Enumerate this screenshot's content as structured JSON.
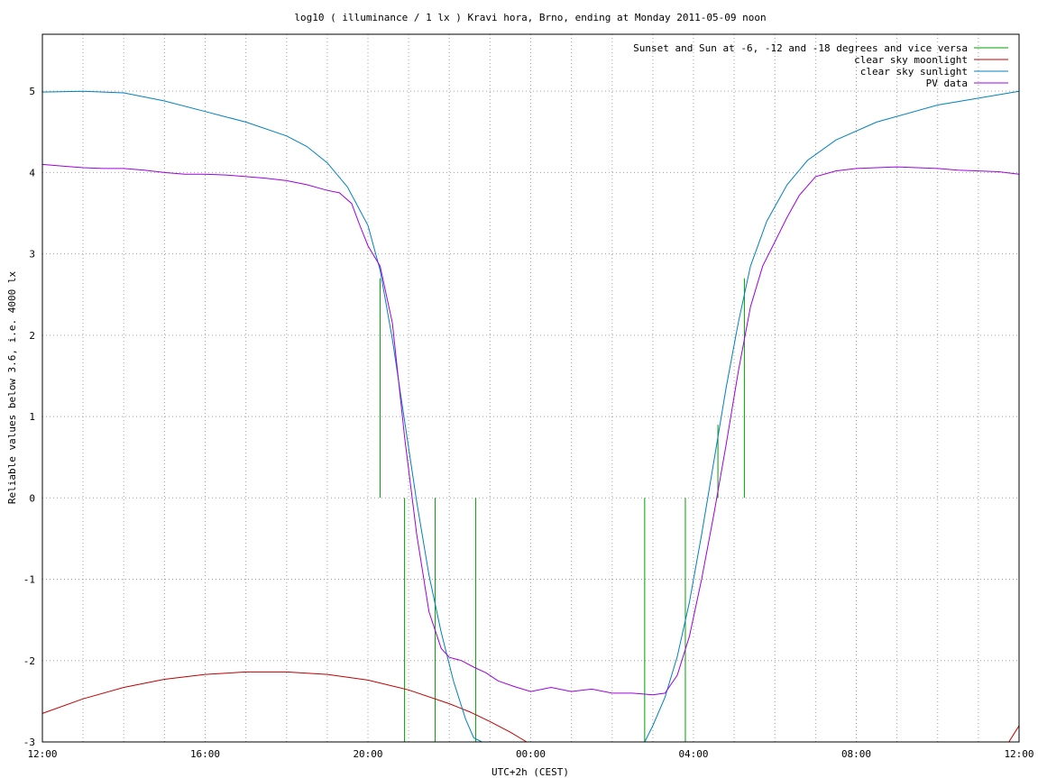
{
  "chart_data": {
    "type": "line",
    "title": "log10 ( illuminance / 1 lx ) Kravi hora, Brno, ending at Monday 2011-05-09 noon",
    "xlabel": "UTC+2h (CEST)",
    "ylabel": "Reliable values below 3.6, i.e. 4000 lx",
    "x_unit": "hours since 12:00 (start of window)",
    "xlim": [
      0,
      24
    ],
    "ylim": [
      -3,
      5.7
    ],
    "grid": true,
    "legend_position": "top-right",
    "x_ticks": [
      {
        "value": 0,
        "label": "12:00"
      },
      {
        "value": 4,
        "label": "16:00"
      },
      {
        "value": 8,
        "label": "20:00"
      },
      {
        "value": 12,
        "label": "00:00"
      },
      {
        "value": 16,
        "label": "04:00"
      },
      {
        "value": 20,
        "label": "08:00"
      },
      {
        "value": 24,
        "label": "12:00"
      }
    ],
    "y_ticks": [
      {
        "value": -3,
        "label": "-3"
      },
      {
        "value": -2,
        "label": "-2"
      },
      {
        "value": -1,
        "label": "-1"
      },
      {
        "value": 0,
        "label": "0"
      },
      {
        "value": 1,
        "label": "1"
      },
      {
        "value": 2,
        "label": "2"
      },
      {
        "value": 3,
        "label": "3"
      },
      {
        "value": 4,
        "label": "4"
      },
      {
        "value": 5,
        "label": "5"
      }
    ],
    "series": [
      {
        "name": "Sunset and Sun at -6, -12 and -18 degrees and vice versa",
        "color": "#00a000",
        "kind": "vertical-lines",
        "lines": [
          {
            "x": 8.3,
            "y": [
              0,
              2.7
            ]
          },
          {
            "x": 8.9,
            "y": [
              -3,
              0
            ]
          },
          {
            "x": 9.65,
            "y": [
              -3,
              0
            ]
          },
          {
            "x": 10.65,
            "y": [
              -3,
              0
            ]
          },
          {
            "x": 14.8,
            "y": [
              -3,
              0
            ]
          },
          {
            "x": 15.8,
            "y": [
              -3,
              0
            ]
          },
          {
            "x": 16.6,
            "y": [
              0,
              0.9
            ]
          },
          {
            "x": 17.25,
            "y": [
              0,
              2.7
            ]
          }
        ]
      },
      {
        "name": "clear sky moonlight",
        "color": "#c00000",
        "x": [
          0,
          1,
          2,
          3,
          4,
          5,
          6,
          7,
          8,
          9,
          10,
          10.5,
          11,
          11.5,
          11.9
        ],
        "y": [
          -2.65,
          -2.47,
          -2.33,
          -2.23,
          -2.17,
          -2.14,
          -2.14,
          -2.17,
          -2.24,
          -2.36,
          -2.53,
          -2.63,
          -2.75,
          -2.88,
          -3.0
        ],
        "x2": [
          23.75,
          23.9,
          24
        ],
        "y2": [
          -3.0,
          -2.88,
          -2.8
        ]
      },
      {
        "name": "clear sky sunlight",
        "color": "#0080c0",
        "x": [
          0,
          1,
          2,
          3,
          4,
          5,
          6,
          6.5,
          7,
          7.5,
          8,
          8.3,
          8.6,
          8.9,
          9.2,
          9.5,
          9.8,
          10.1,
          10.4,
          10.6,
          10.8,
          14.8,
          15.0,
          15.3,
          15.6,
          15.9,
          16.2,
          16.5,
          16.8,
          17.1,
          17.4,
          17.8,
          18.3,
          18.8,
          19.5,
          20.5,
          22,
          24
        ],
        "y": [
          4.99,
          5.0,
          4.98,
          4.88,
          4.75,
          4.62,
          4.45,
          4.32,
          4.12,
          3.82,
          3.35,
          2.8,
          1.95,
          0.95,
          -0.05,
          -0.95,
          -1.65,
          -2.25,
          -2.72,
          -2.95,
          -3.0,
          -3.0,
          -2.8,
          -2.45,
          -1.95,
          -1.28,
          -0.45,
          0.45,
          1.35,
          2.15,
          2.85,
          3.4,
          3.85,
          4.15,
          4.4,
          4.62,
          4.83,
          5.0
        ]
      },
      {
        "name": "PV data",
        "color": "#a000e0",
        "x": [
          0,
          0.5,
          1,
          1.5,
          2,
          2.5,
          3,
          3.5,
          4,
          4.5,
          5,
          5.5,
          6,
          6.5,
          7,
          7.3,
          7.6,
          7.8,
          8.0,
          8.3,
          8.6,
          8.9,
          9.2,
          9.5,
          9.8,
          10.0,
          10.3,
          10.6,
          10.9,
          11.2,
          11.6,
          12,
          12.5,
          13,
          13.5,
          14,
          14.5,
          15,
          15.3,
          15.6,
          15.9,
          16.2,
          16.5,
          16.8,
          17.1,
          17.4,
          17.7,
          18.0,
          18.3,
          18.6,
          19,
          19.5,
          20,
          20.5,
          21,
          21.5,
          22,
          22.5,
          23,
          23.5,
          24
        ],
        "y": [
          4.1,
          4.08,
          4.06,
          4.05,
          4.05,
          4.03,
          4.0,
          3.98,
          3.98,
          3.97,
          3.95,
          3.93,
          3.9,
          3.85,
          3.78,
          3.75,
          3.62,
          3.35,
          3.1,
          2.85,
          2.15,
          0.75,
          -0.45,
          -1.4,
          -1.85,
          -1.96,
          -2.0,
          -2.08,
          -2.15,
          -2.25,
          -2.32,
          -2.38,
          -2.33,
          -2.38,
          -2.35,
          -2.4,
          -2.4,
          -2.42,
          -2.4,
          -2.18,
          -1.7,
          -1.0,
          -0.2,
          0.65,
          1.55,
          2.35,
          2.85,
          3.15,
          3.45,
          3.72,
          3.95,
          4.02,
          4.05,
          4.06,
          4.07,
          4.06,
          4.05,
          4.03,
          4.02,
          4.01,
          3.98
        ]
      }
    ]
  }
}
